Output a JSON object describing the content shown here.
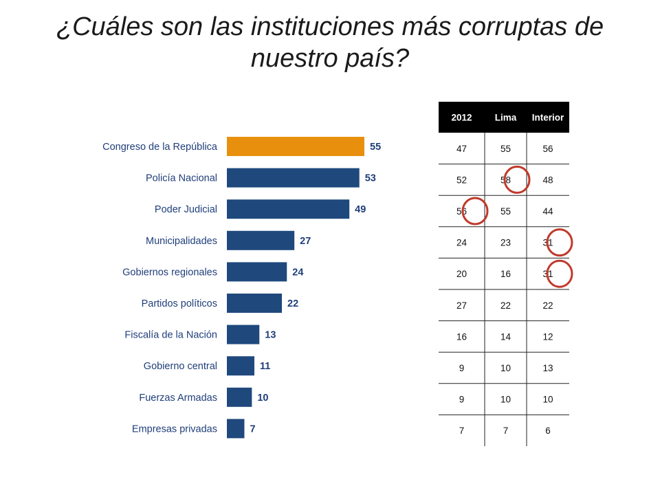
{
  "slide": {
    "title": "¿Cuáles son las instituciones más corruptas de nuestro país?"
  },
  "colors": {
    "bar": "#1f497d",
    "highlight_bar": "#e8900d",
    "header_bg": "#000000",
    "circle": "#c0392b"
  },
  "chart_data": {
    "type": "bar",
    "orientation": "horizontal",
    "categories": [
      "Congreso de la República",
      "Policía Nacional",
      "Poder Judicial",
      "Municipalidades",
      "Gobiernos regionales",
      "Partidos políticos",
      "Fiscalía de la Nación",
      "Gobierno central",
      "Fuerzas Armadas",
      "Empresas privadas"
    ],
    "values": [
      55,
      53,
      49,
      27,
      24,
      22,
      13,
      11,
      10,
      7
    ],
    "highlighted_category": "Congreso de la República",
    "data_labels": true,
    "grid": false,
    "xlim": [
      0,
      55
    ]
  },
  "comparison_table": {
    "headers": [
      "2012",
      "Lima",
      "Interior"
    ],
    "rows": [
      [
        "47",
        "55",
        "56"
      ],
      [
        "52",
        "58",
        "48"
      ],
      [
        "56",
        "55",
        "44"
      ],
      [
        "24",
        "23",
        "31"
      ],
      [
        "20",
        "16",
        "31"
      ],
      [
        "27",
        "22",
        "22"
      ],
      [
        "16",
        "14",
        "12"
      ],
      [
        "9",
        "10",
        "13"
      ],
      [
        "9",
        "10",
        "10"
      ],
      [
        "7",
        "7",
        "6"
      ]
    ],
    "circled_cells": [
      [
        1,
        1
      ],
      [
        2,
        0
      ],
      [
        3,
        2
      ],
      [
        4,
        2
      ]
    ]
  }
}
